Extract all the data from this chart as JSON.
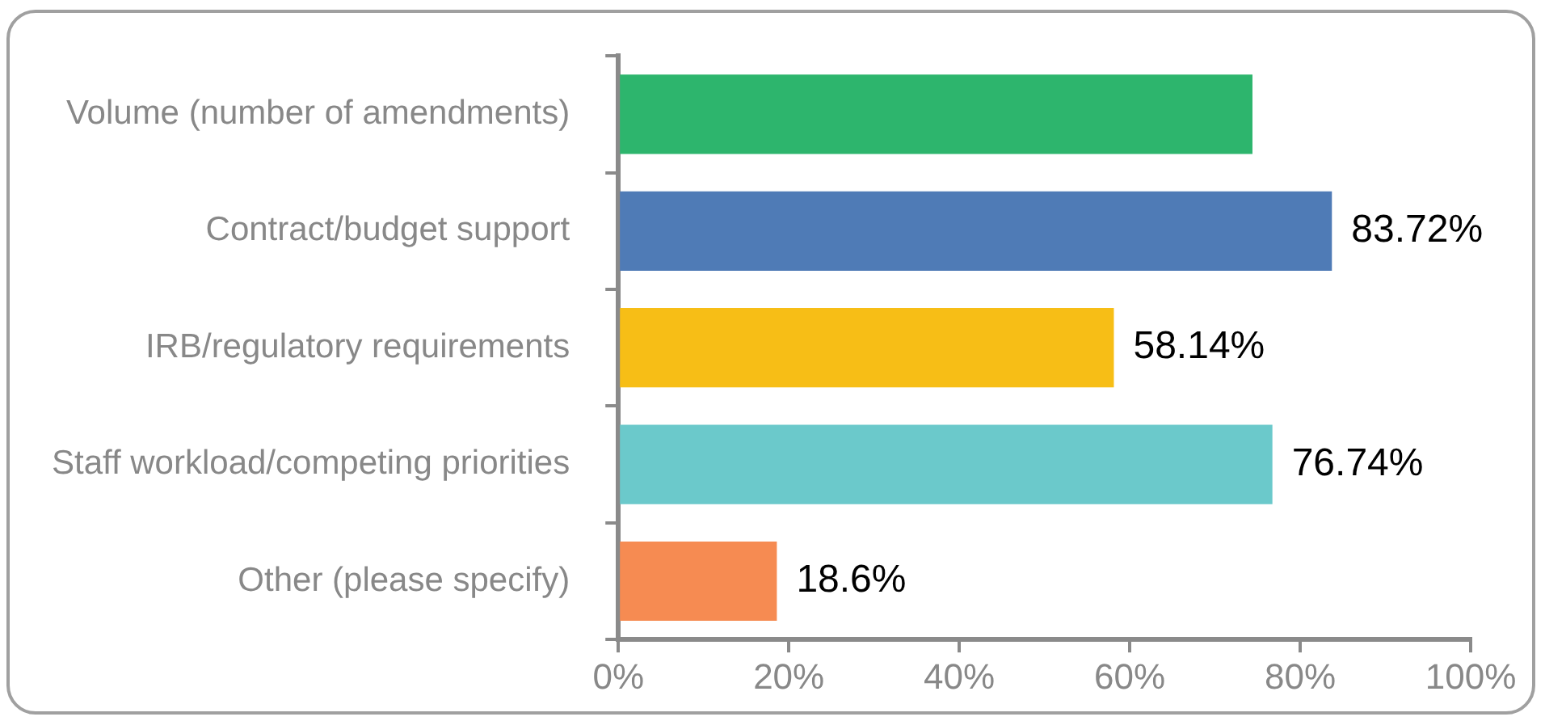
{
  "chart_data": {
    "type": "bar",
    "orientation": "horizontal",
    "categories": [
      "Volume (number of amendments)",
      "Contract/budget support",
      "IRB/regulatory requirements",
      "Staff workload/competing priorities",
      "Other (please specify)"
    ],
    "values": [
      74.4,
      83.72,
      58.14,
      76.74,
      18.6
    ],
    "colors": [
      "#2db56d",
      "#4f7bb6",
      "#f7be16",
      "#6bc9cb",
      "#f68b52"
    ],
    "value_labels": [
      null,
      "83.72%",
      "58.14%",
      "76.74%",
      "18.6%"
    ],
    "xlim": [
      0,
      100
    ],
    "xticks": [
      {
        "value": 0,
        "label": "0%"
      },
      {
        "value": 20,
        "label": "20%"
      },
      {
        "value": 40,
        "label": "40%"
      },
      {
        "value": 60,
        "label": "60%"
      },
      {
        "value": 80,
        "label": "80%"
      },
      {
        "value": 100,
        "label": "100%"
      }
    ],
    "grid": false,
    "legend": false
  }
}
